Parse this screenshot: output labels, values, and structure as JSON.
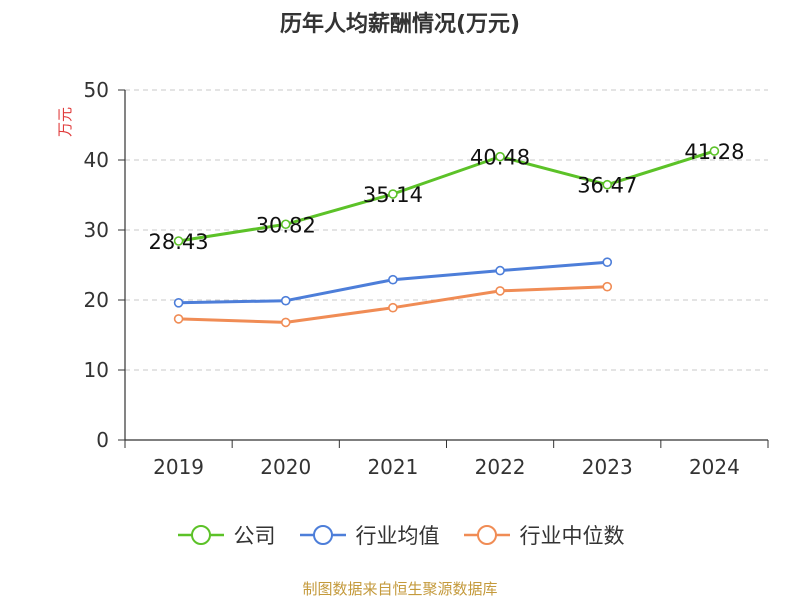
{
  "chart_data": {
    "type": "line",
    "title": "历年人均薪酬情况(万元)",
    "ylabel": "万元",
    "categories": [
      "2019",
      "2020",
      "2021",
      "2022",
      "2023",
      "2024"
    ],
    "ylim": [
      0,
      50
    ],
    "yticks": [
      0,
      10,
      20,
      30,
      40,
      50
    ],
    "grid": true,
    "legend_position": "bottom",
    "series": [
      {
        "name": "公司",
        "color": "#5cc228",
        "show_labels": true,
        "labels": [
          "28.43",
          "30.82",
          "35.14",
          "40.48",
          "36.47",
          "41.28"
        ],
        "values": [
          28.43,
          30.82,
          35.14,
          40.48,
          36.47,
          41.28
        ]
      },
      {
        "name": "行业均值",
        "color": "#4d7ed9",
        "show_labels": false,
        "values": [
          19.6,
          19.9,
          22.9,
          24.2,
          25.4,
          null
        ]
      },
      {
        "name": "行业中位数",
        "color": "#f08c55",
        "show_labels": false,
        "values": [
          17.3,
          16.8,
          18.9,
          21.3,
          21.9,
          null
        ]
      }
    ]
  },
  "source": "制图数据来自恒生聚源数据库"
}
